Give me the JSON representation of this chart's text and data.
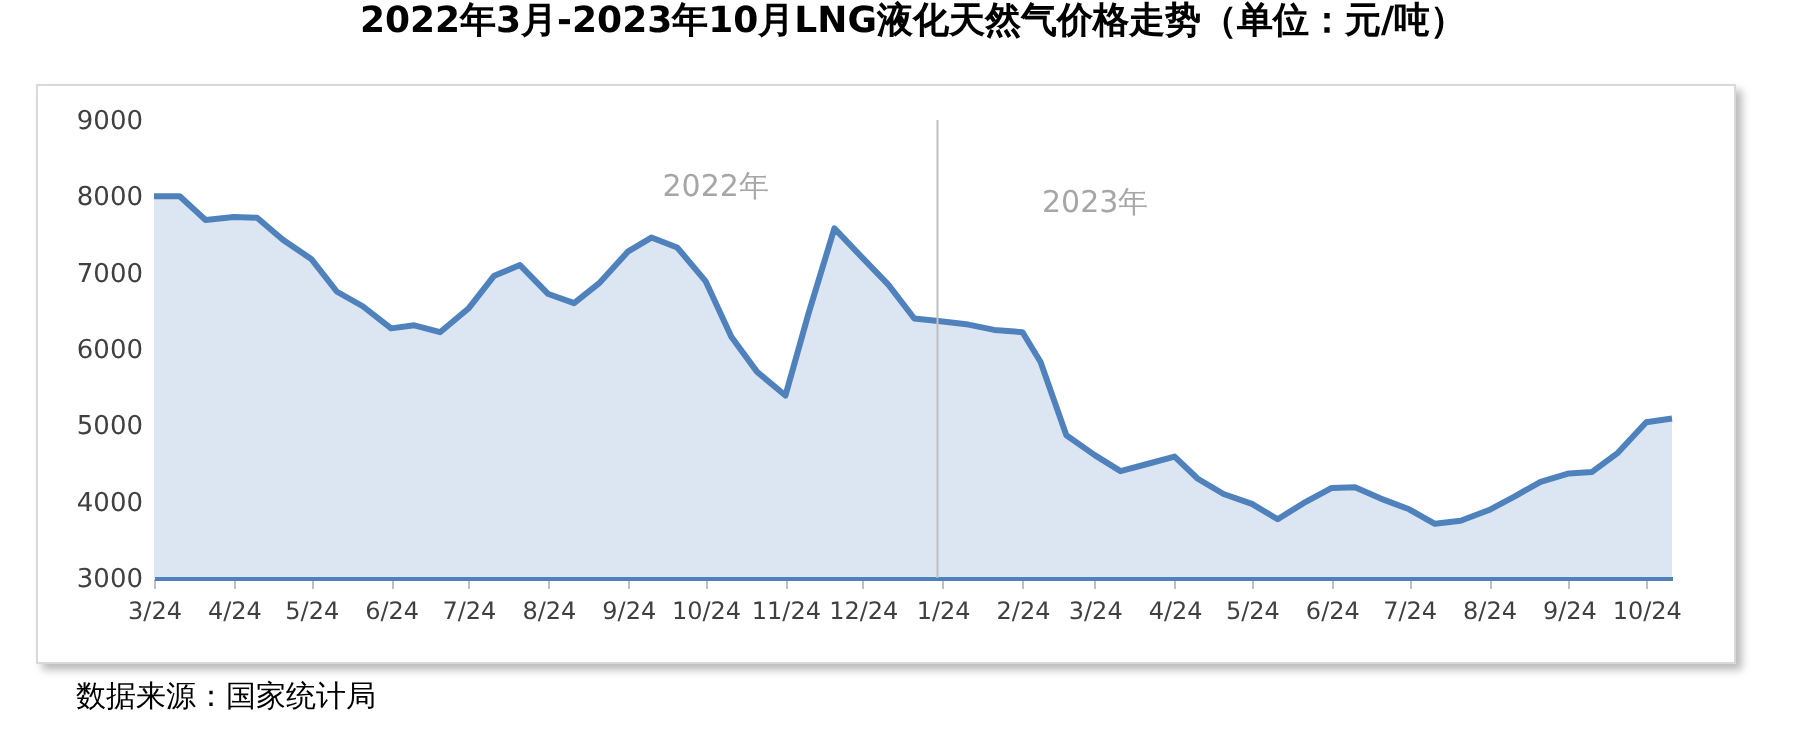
{
  "chart_data": {
    "type": "area",
    "title": "2022年3月-2023年10月LNG液化天然气价格走势（单位：元/吨）",
    "x": [
      "2022-03-24",
      "2022-04-03",
      "2022-04-13",
      "2022-04-24",
      "2022-05-03",
      "2022-05-13",
      "2022-05-24",
      "2022-06-03",
      "2022-06-13",
      "2022-06-24",
      "2022-07-03",
      "2022-07-13",
      "2022-07-24",
      "2022-08-03",
      "2022-08-13",
      "2022-08-24",
      "2022-09-03",
      "2022-09-13",
      "2022-09-24",
      "2022-10-03",
      "2022-10-13",
      "2022-10-24",
      "2022-11-03",
      "2022-11-13",
      "2022-11-24",
      "2022-12-03",
      "2022-12-13",
      "2022-12-24",
      "2023-01-03",
      "2023-01-13",
      "2023-01-24",
      "2023-02-03",
      "2023-02-13",
      "2023-02-24",
      "2023-03-03",
      "2023-03-13",
      "2023-03-24",
      "2023-04-03",
      "2023-04-13",
      "2023-04-24",
      "2023-05-03",
      "2023-05-13",
      "2023-05-24",
      "2023-06-03",
      "2023-06-13",
      "2023-06-24",
      "2023-07-03",
      "2023-07-13",
      "2023-07-24",
      "2023-08-03",
      "2023-08-13",
      "2023-08-24",
      "2023-09-03",
      "2023-09-13",
      "2023-09-24",
      "2023-10-03",
      "2023-10-13",
      "2023-10-24",
      "2023-11-03"
    ],
    "series": [
      {
        "color": "#4f81bd",
        "values": [
          8000,
          8000,
          7690,
          7730,
          7720,
          7430,
          7180,
          6750,
          6560,
          6270,
          6310,
          6220,
          6530,
          6960,
          7100,
          6720,
          6600,
          6870,
          7280,
          7460,
          7330,
          6890,
          6160,
          5700,
          5390,
          6470,
          7580,
          7190,
          6840,
          6400,
          6360,
          6320,
          6250,
          6220,
          5830,
          4870,
          4610,
          4400,
          4490,
          4590,
          4300,
          4100,
          3970,
          3770,
          3980,
          4180,
          4190,
          4040,
          3900,
          3710,
          3750,
          3890,
          4070,
          4260,
          4370,
          4390,
          4640,
          5040,
          5090
        ]
      }
    ],
    "xlim": [
      "2022-03-24",
      "2023-11-03"
    ],
    "xticks": [
      {
        "value": "2022-03-24",
        "label": "3/24"
      },
      {
        "value": "2022-04-24",
        "label": "4/24"
      },
      {
        "value": "2022-05-24",
        "label": "5/24"
      },
      {
        "value": "2022-06-24",
        "label": "6/24"
      },
      {
        "value": "2022-07-24",
        "label": "7/24"
      },
      {
        "value": "2022-08-24",
        "label": "8/24"
      },
      {
        "value": "2022-09-24",
        "label": "9/24"
      },
      {
        "value": "2022-10-24",
        "label": "10/24"
      },
      {
        "value": "2022-11-24",
        "label": "11/24"
      },
      {
        "value": "2022-12-24",
        "label": "12/24"
      },
      {
        "value": "2023-01-24",
        "label": "1/24"
      },
      {
        "value": "2023-02-24",
        "label": "2/24"
      },
      {
        "value": "2023-03-24",
        "label": "3/24"
      },
      {
        "value": "2023-04-24",
        "label": "4/24"
      },
      {
        "value": "2023-05-24",
        "label": "5/24"
      },
      {
        "value": "2023-06-24",
        "label": "6/24"
      },
      {
        "value": "2023-07-24",
        "label": "7/24"
      },
      {
        "value": "2023-08-24",
        "label": "8/24"
      },
      {
        "value": "2023-09-24",
        "label": "9/24"
      },
      {
        "value": "2023-10-24",
        "label": "10/24"
      }
    ],
    "ylim": [
      3000,
      9000
    ],
    "yticks": [
      3000,
      4000,
      5000,
      6000,
      7000,
      8000,
      9000
    ],
    "ref_lines": [
      {
        "axis": "x",
        "value": "2023-01-22",
        "color": "#bfbfbf"
      }
    ],
    "annotations": [
      "2022年",
      "2023年",
      "数据来源：国家统计局"
    ],
    "grid": false
  }
}
